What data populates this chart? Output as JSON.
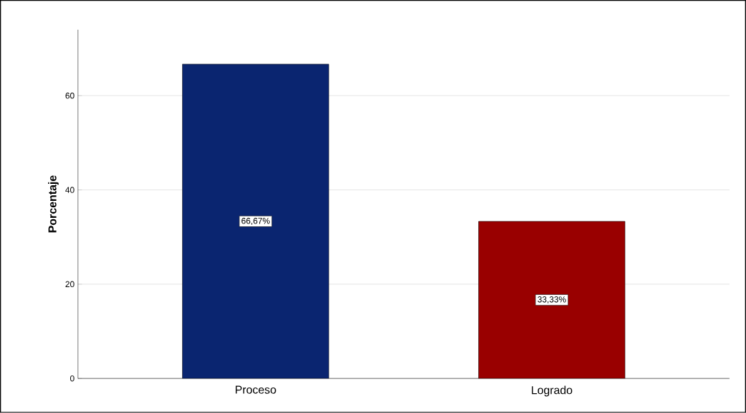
{
  "chart_data": {
    "type": "bar",
    "ylabel": "Porcentaje",
    "categories": [
      "Proceso",
      "Logrado"
    ],
    "values": [
      66.67,
      33.33
    ],
    "colors": [
      "#0a2570",
      "#990000"
    ],
    "value_labels": [
      "66,67%",
      "33,33%"
    ],
    "ylim": [
      0,
      74
    ],
    "yticks": [
      0,
      20,
      40,
      60
    ],
    "grid": "y"
  }
}
